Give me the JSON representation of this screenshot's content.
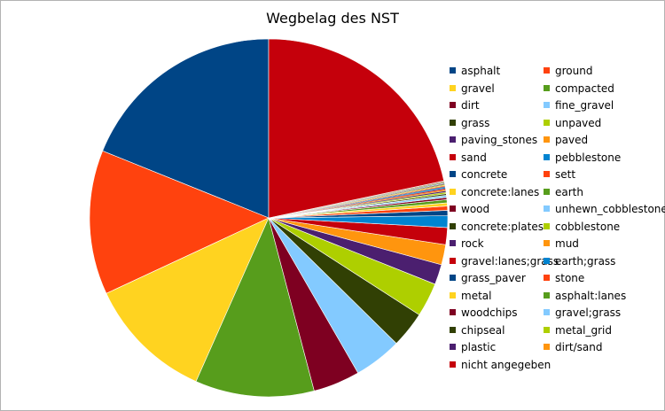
{
  "chart_data": {
    "type": "pie",
    "title": "Wegbelag des NST",
    "legend_position": "right",
    "slices": [
      {
        "name": "asphalt",
        "value": 19.7,
        "color": "#004586"
      },
      {
        "name": "ground",
        "value": 13.6,
        "color": "#ff420e"
      },
      {
        "name": "gravel",
        "value": 11.9,
        "color": "#ffd320"
      },
      {
        "name": "compacted",
        "value": 11.2,
        "color": "#579d1c"
      },
      {
        "name": "dirt",
        "value": 4.4,
        "color": "#7e0021"
      },
      {
        "name": "fine_gravel",
        "value": 4.5,
        "color": "#83caff"
      },
      {
        "name": "grass",
        "value": 3.4,
        "color": "#314004"
      },
      {
        "name": "unpaved",
        "value": 3.2,
        "color": "#aecf00"
      },
      {
        "name": "paving_stones",
        "value": 1.9,
        "color": "#4b1f6f"
      },
      {
        "name": "paved",
        "value": 1.9,
        "color": "#ff950e"
      },
      {
        "name": "sand",
        "value": 1.6,
        "color": "#c5000b"
      },
      {
        "name": "pebblestone",
        "value": 1.1,
        "color": "#0084d1"
      },
      {
        "name": "concrete",
        "value": 0.5,
        "color": "#004586"
      },
      {
        "name": "sett",
        "value": 0.4,
        "color": "#ff420e"
      },
      {
        "name": "concrete:lanes",
        "value": 0.3,
        "color": "#ffd320"
      },
      {
        "name": "earth",
        "value": 0.3,
        "color": "#579d1c"
      },
      {
        "name": "wood",
        "value": 0.2,
        "color": "#7e0021"
      },
      {
        "name": "unhewn_cobblestone",
        "value": 0.2,
        "color": "#83caff"
      },
      {
        "name": "concrete:plates",
        "value": 0.15,
        "color": "#314004"
      },
      {
        "name": "cobblestone",
        "value": 0.15,
        "color": "#aecf00"
      },
      {
        "name": "rock",
        "value": 0.12,
        "color": "#4b1f6f"
      },
      {
        "name": "mud",
        "value": 0.12,
        "color": "#ff950e"
      },
      {
        "name": "gravel:lanes;grass",
        "value": 0.1,
        "color": "#c5000b"
      },
      {
        "name": "earth;grass",
        "value": 0.1,
        "color": "#0084d1"
      },
      {
        "name": "grass_paver",
        "value": 0.08,
        "color": "#004586"
      },
      {
        "name": "stone",
        "value": 0.08,
        "color": "#ff420e"
      },
      {
        "name": "metal",
        "value": 0.07,
        "color": "#ffd320"
      },
      {
        "name": "asphalt:lanes",
        "value": 0.07,
        "color": "#579d1c"
      },
      {
        "name": "woodchips",
        "value": 0.06,
        "color": "#7e0021"
      },
      {
        "name": "gravel;grass",
        "value": 0.06,
        "color": "#83caff"
      },
      {
        "name": "chipseal",
        "value": 0.05,
        "color": "#314004"
      },
      {
        "name": "metal_grid",
        "value": 0.05,
        "color": "#aecf00"
      },
      {
        "name": "plastic",
        "value": 0.05,
        "color": "#4b1f6f"
      },
      {
        "name": "dirt/sand",
        "value": 0.05,
        "color": "#ff950e"
      },
      {
        "name": "nicht angegeben",
        "value": 22.6,
        "color": "#c5000b"
      }
    ]
  }
}
